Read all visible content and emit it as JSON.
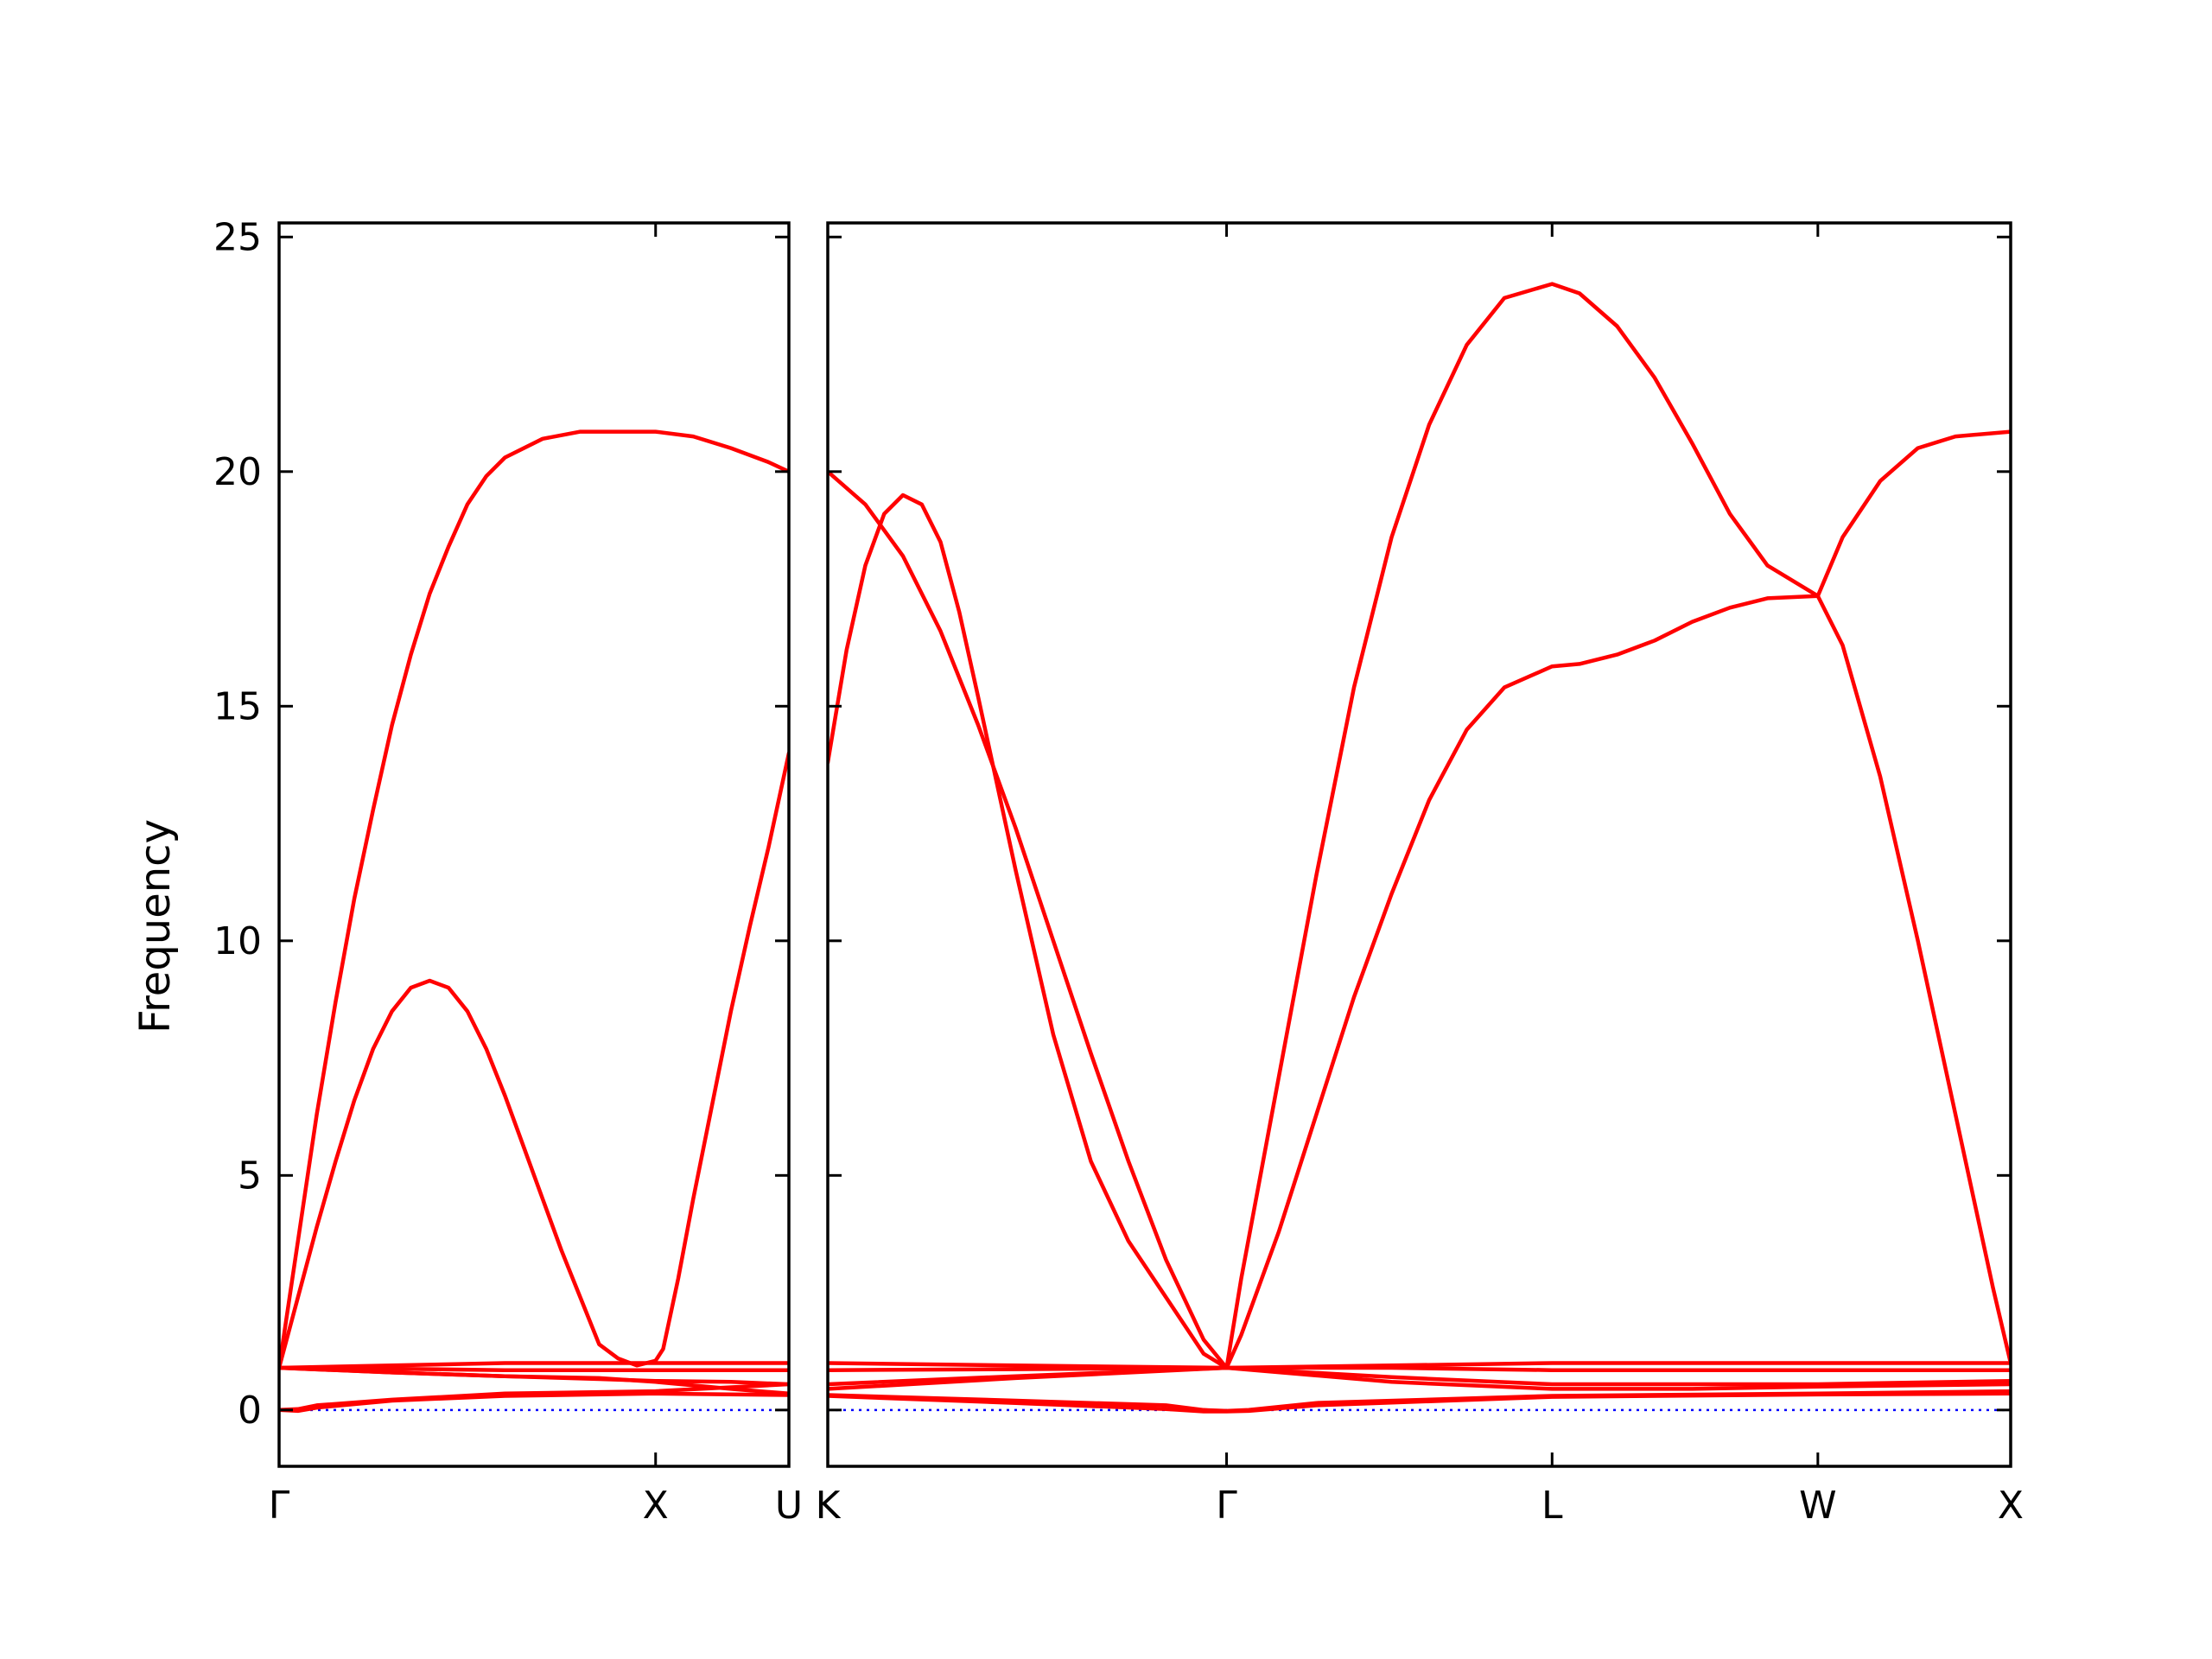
{
  "chart_data": {
    "type": "line",
    "title": "",
    "ylabel": "Frequency",
    "xlabel": "",
    "ylim": [
      -1.2,
      25.3
    ],
    "y_ticks": [
      0,
      5,
      10,
      15,
      20,
      25
    ],
    "grid": false,
    "legend": "none",
    "colors": {
      "bands": "#ff0000",
      "zero_line": "#0000ff",
      "axes": "#000000"
    },
    "panels": [
      {
        "name": "panel-left",
        "x_range": [
          0,
          1.354
        ],
        "high_symmetry_points": [
          {
            "label": "Γ",
            "x": 0
          },
          {
            "label": "X",
            "x": 1.0
          },
          {
            "label": "U",
            "x": 1.354
          }
        ],
        "series": [
          {
            "values": [
              [
                0,
                0.9
              ],
              [
                0.05,
                3.6
              ],
              [
                0.1,
                6.3
              ],
              [
                0.15,
                8.7
              ],
              [
                0.2,
                10.9
              ],
              [
                0.25,
                12.8
              ],
              [
                0.3,
                14.6
              ],
              [
                0.35,
                16.1
              ],
              [
                0.4,
                17.4
              ],
              [
                0.45,
                18.4
              ],
              [
                0.5,
                19.3
              ],
              [
                0.55,
                19.9
              ],
              [
                0.6,
                20.3
              ],
              [
                0.7,
                20.7
              ],
              [
                0.8,
                20.85
              ],
              [
                0.9,
                20.85
              ],
              [
                1.0,
                20.85
              ],
              [
                1.1,
                20.75
              ],
              [
                1.2,
                20.5
              ],
              [
                1.3,
                20.2
              ],
              [
                1.354,
                20.0
              ]
            ]
          },
          {
            "values": [
              [
                0,
                0.9
              ],
              [
                0.05,
                2.4
              ],
              [
                0.1,
                3.9
              ],
              [
                0.15,
                5.3
              ],
              [
                0.2,
                6.6
              ],
              [
                0.25,
                7.7
              ],
              [
                0.3,
                8.5
              ],
              [
                0.35,
                9.0
              ],
              [
                0.4,
                9.15
              ],
              [
                0.45,
                9.0
              ],
              [
                0.5,
                8.5
              ],
              [
                0.55,
                7.7
              ],
              [
                0.6,
                6.7
              ],
              [
                0.65,
                5.6
              ],
              [
                0.7,
                4.5
              ],
              [
                0.75,
                3.4
              ],
              [
                0.8,
                2.4
              ],
              [
                0.85,
                1.4
              ],
              [
                0.9,
                1.1
              ],
              [
                0.95,
                0.95
              ],
              [
                1.0,
                1.05
              ]
            ]
          },
          {
            "values": [
              [
                1.0,
                1.05
              ],
              [
                1.02,
                1.3
              ],
              [
                1.06,
                2.8
              ],
              [
                1.1,
                4.5
              ],
              [
                1.15,
                6.5
              ],
              [
                1.2,
                8.5
              ],
              [
                1.25,
                10.3
              ],
              [
                1.3,
                12.0
              ],
              [
                1.354,
                14.0
              ]
            ]
          },
          {
            "values": [
              [
                0,
                0.9
              ],
              [
                0.3,
                0.95
              ],
              [
                0.6,
                1.0
              ],
              [
                1.0,
                1.0
              ],
              [
                1.354,
                1.0
              ]
            ]
          },
          {
            "values": [
              [
                0,
                0.9
              ],
              [
                0.3,
                0.88
              ],
              [
                0.6,
                0.85
              ],
              [
                1.0,
                0.85
              ],
              [
                1.354,
                0.85
              ]
            ]
          },
          {
            "values": [
              [
                0,
                0.9
              ],
              [
                0.3,
                0.8
              ],
              [
                0.6,
                0.72
              ],
              [
                0.85,
                0.66
              ],
              [
                1.0,
                0.62
              ],
              [
                1.2,
                0.6
              ],
              [
                1.354,
                0.55
              ]
            ]
          },
          {
            "values": [
              [
                0,
                0.9
              ],
              [
                0.3,
                0.8
              ],
              [
                0.6,
                0.72
              ],
              [
                0.85,
                0.68
              ],
              [
                1.0,
                0.6
              ],
              [
                1.2,
                0.45
              ],
              [
                1.354,
                0.35
              ]
            ]
          },
          {
            "values": [
              [
                0,
                0.0
              ],
              [
                0.05,
                0.02
              ],
              [
                0.1,
                0.1
              ],
              [
                0.3,
                0.22
              ],
              [
                0.6,
                0.35
              ],
              [
                1.0,
                0.4
              ],
              [
                1.354,
                0.55
              ]
            ]
          },
          {
            "values": [
              [
                0,
                0.0
              ],
              [
                0.05,
                -0.02
              ],
              [
                0.1,
                0.05
              ],
              [
                0.3,
                0.2
              ],
              [
                0.6,
                0.3
              ],
              [
                1.0,
                0.35
              ],
              [
                1.354,
                0.32
              ]
            ]
          }
        ]
      },
      {
        "name": "panel-right",
        "x_range": [
          0,
          3.147
        ],
        "high_symmetry_points": [
          {
            "label": "K",
            "x": 0
          },
          {
            "label": "Γ",
            "x": 1.061
          },
          {
            "label": "L",
            "x": 1.927
          },
          {
            "label": "W",
            "x": 2.634
          },
          {
            "label": "X",
            "x": 3.147
          }
        ],
        "series": [
          {
            "values": [
              [
                0,
                20.0
              ],
              [
                0.1,
                19.3
              ],
              [
                0.2,
                18.2
              ],
              [
                0.3,
                16.6
              ],
              [
                0.4,
                14.6
              ],
              [
                0.5,
                12.4
              ],
              [
                0.6,
                10.0
              ],
              [
                0.7,
                7.6
              ],
              [
                0.8,
                5.3
              ],
              [
                0.9,
                3.2
              ],
              [
                1.0,
                1.5
              ],
              [
                1.061,
                0.9
              ]
            ]
          },
          {
            "values": [
              [
                0,
                13.8
              ],
              [
                0.05,
                16.2
              ],
              [
                0.1,
                18.0
              ],
              [
                0.15,
                19.1
              ],
              [
                0.2,
                19.5
              ],
              [
                0.25,
                19.3
              ],
              [
                0.3,
                18.5
              ],
              [
                0.35,
                17.0
              ],
              [
                0.4,
                15.2
              ],
              [
                0.5,
                11.5
              ],
              [
                0.6,
                8.0
              ],
              [
                0.7,
                5.3
              ],
              [
                0.8,
                3.6
              ],
              [
                0.9,
                2.4
              ],
              [
                1.0,
                1.2
              ],
              [
                1.061,
                0.9
              ]
            ]
          },
          {
            "values": [
              [
                1.061,
                0.9
              ],
              [
                1.1,
                2.8
              ],
              [
                1.2,
                7.1
              ],
              [
                1.3,
                11.4
              ],
              [
                1.4,
                15.4
              ],
              [
                1.5,
                18.6
              ],
              [
                1.6,
                21.0
              ],
              [
                1.7,
                22.7
              ],
              [
                1.8,
                23.7
              ],
              [
                1.927,
                24.0
              ],
              [
                2.0,
                23.8
              ],
              [
                2.1,
                23.1
              ],
              [
                2.2,
                22.0
              ],
              [
                2.3,
                20.6
              ],
              [
                2.4,
                19.1
              ],
              [
                2.5,
                18.0
              ],
              [
                2.634,
                17.35
              ],
              [
                2.7,
                18.6
              ],
              [
                2.8,
                19.8
              ],
              [
                2.9,
                20.5
              ],
              [
                3.0,
                20.75
              ],
              [
                3.147,
                20.85
              ]
            ]
          },
          {
            "values": [
              [
                1.061,
                0.9
              ],
              [
                1.1,
                1.6
              ],
              [
                1.2,
                3.8
              ],
              [
                1.3,
                6.3
              ],
              [
                1.4,
                8.8
              ],
              [
                1.5,
                11.0
              ],
              [
                1.6,
                13.0
              ],
              [
                1.7,
                14.5
              ],
              [
                1.8,
                15.4
              ],
              [
                1.927,
                15.85
              ],
              [
                2.0,
                15.9
              ],
              [
                2.1,
                16.1
              ],
              [
                2.2,
                16.4
              ],
              [
                2.3,
                16.8
              ],
              [
                2.4,
                17.1
              ],
              [
                2.5,
                17.3
              ],
              [
                2.634,
                17.35
              ],
              [
                2.7,
                16.3
              ],
              [
                2.8,
                13.5
              ],
              [
                2.9,
                10.0
              ],
              [
                3.0,
                6.3
              ],
              [
                3.1,
                2.6
              ],
              [
                3.147,
                1.0
              ]
            ]
          },
          {
            "values": [
              [
                0,
                1.0
              ],
              [
                0.5,
                0.95
              ],
              [
                1.061,
                0.9
              ],
              [
                1.5,
                0.95
              ],
              [
                1.927,
                1.0
              ],
              [
                2.634,
                1.0
              ],
              [
                3.147,
                1.0
              ]
            ]
          },
          {
            "values": [
              [
                0,
                0.85
              ],
              [
                0.5,
                0.87
              ],
              [
                1.061,
                0.9
              ],
              [
                1.5,
                0.9
              ],
              [
                1.927,
                0.85
              ],
              [
                2.634,
                0.85
              ],
              [
                3.147,
                0.85
              ]
            ]
          },
          {
            "values": [
              [
                0,
                0.55
              ],
              [
                0.5,
                0.72
              ],
              [
                1.061,
                0.9
              ],
              [
                1.5,
                0.7
              ],
              [
                1.927,
                0.55
              ],
              [
                2.3,
                0.55
              ],
              [
                2.634,
                0.55
              ],
              [
                3.147,
                0.62
              ]
            ]
          },
          {
            "values": [
              [
                0,
                0.45
              ],
              [
                0.5,
                0.68
              ],
              [
                1.061,
                0.9
              ],
              [
                1.5,
                0.6
              ],
              [
                1.927,
                0.45
              ],
              [
                2.3,
                0.45
              ],
              [
                2.634,
                0.5
              ],
              [
                3.147,
                0.55
              ]
            ]
          },
          {
            "values": [
              [
                0,
                0.32
              ],
              [
                0.5,
                0.2
              ],
              [
                0.9,
                0.1
              ],
              [
                1.0,
                0.0
              ],
              [
                1.061,
                -0.02
              ],
              [
                1.12,
                0.0
              ],
              [
                1.3,
                0.15
              ],
              [
                1.927,
                0.3
              ],
              [
                2.634,
                0.35
              ],
              [
                3.147,
                0.4
              ]
            ]
          },
          {
            "values": [
              [
                0,
                0.3
              ],
              [
                0.5,
                0.15
              ],
              [
                0.9,
                0.02
              ],
              [
                1.0,
                -0.03
              ],
              [
                1.061,
                -0.03
              ],
              [
                1.12,
                -0.02
              ],
              [
                1.3,
                0.1
              ],
              [
                1.927,
                0.28
              ],
              [
                2.634,
                0.33
              ],
              [
                3.147,
                0.35
              ]
            ]
          }
        ]
      }
    ]
  }
}
